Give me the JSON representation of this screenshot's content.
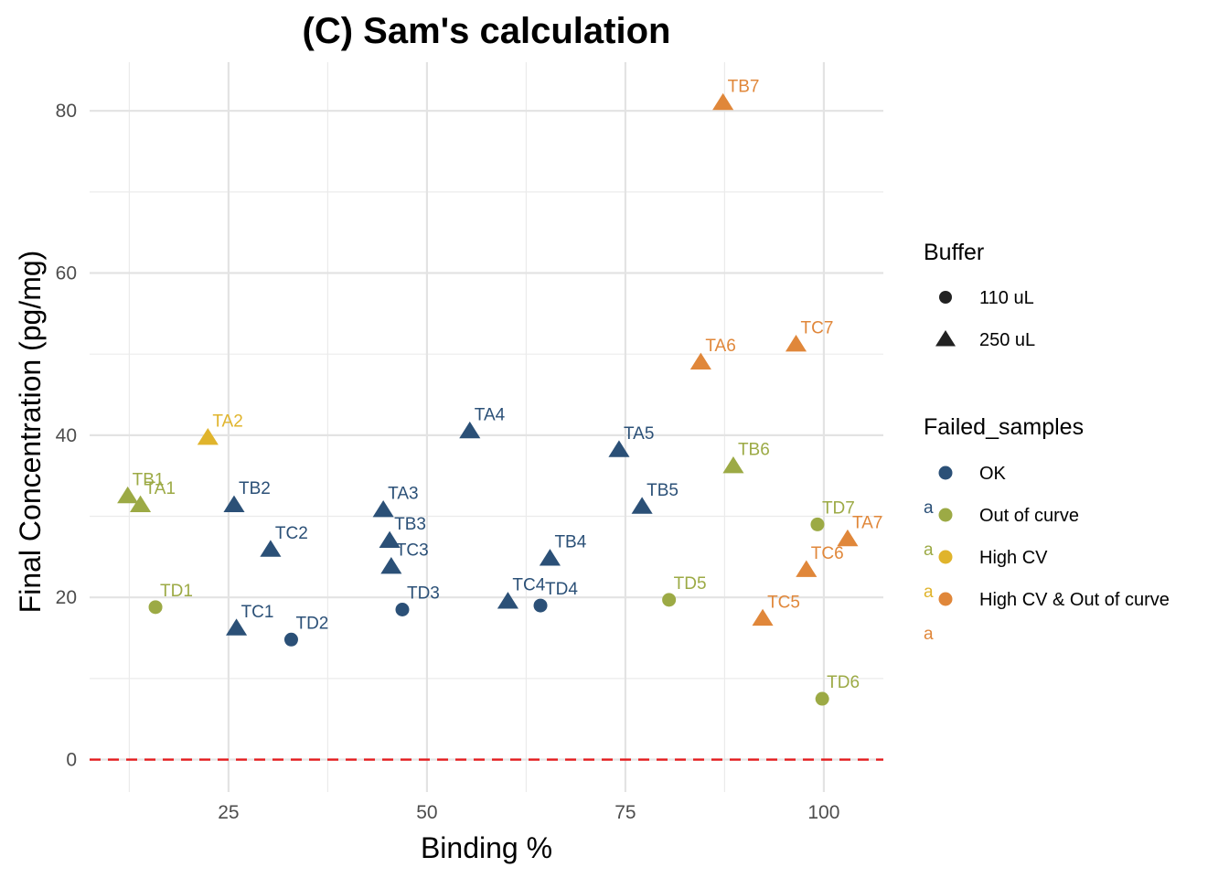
{
  "chart_data": {
    "type": "scatter",
    "title": "(C) Sam's calculation",
    "xlabel": "Binding %",
    "ylabel": "Final Concentration (pg/mg)",
    "xlim": [
      7.5,
      107.5
    ],
    "ylim": [
      -4,
      86
    ],
    "x_ticks": [
      25,
      50,
      75,
      100
    ],
    "x_tick_labels": [
      "25",
      "50",
      "75",
      "100"
    ],
    "y_ticks": [
      0,
      20,
      40,
      60,
      80
    ],
    "y_tick_labels": [
      "0",
      "20",
      "40",
      "60",
      "80"
    ],
    "grid": true,
    "reference_line": {
      "y": 0,
      "color": "#e41a1c",
      "style": "dashed"
    },
    "legend_position": "right",
    "shape_legend": {
      "title": "Buffer",
      "items": [
        {
          "label": "110 uL",
          "shape": "circle"
        },
        {
          "label": "250 uL",
          "shape": "triangle"
        }
      ]
    },
    "color_legend": {
      "title": "Failed_samples",
      "items": [
        {
          "label": "OK",
          "color": "#2b5077"
        },
        {
          "label": "Out of curve",
          "color": "#9caa45"
        },
        {
          "label": "High CV",
          "color": "#e0b42c"
        },
        {
          "label": "High CV & Out of curve",
          "color": "#e0873a"
        }
      ],
      "key_text": "a"
    },
    "points": [
      {
        "label": "TB7",
        "x": 87.3,
        "y": 81.0,
        "shape": "triangle",
        "status": "High CV & Out of curve"
      },
      {
        "label": "TC7",
        "x": 96.5,
        "y": 51.2,
        "shape": "triangle",
        "status": "High CV & Out of curve"
      },
      {
        "label": "TA6",
        "x": 84.5,
        "y": 49.0,
        "shape": "triangle",
        "status": "High CV & Out of curve"
      },
      {
        "label": "TA7",
        "x": 103.0,
        "y": 27.2,
        "shape": "triangle",
        "status": "High CV & Out of curve"
      },
      {
        "label": "TC6",
        "x": 97.8,
        "y": 23.4,
        "shape": "triangle",
        "status": "High CV & Out of curve"
      },
      {
        "label": "TC5",
        "x": 92.3,
        "y": 17.4,
        "shape": "triangle",
        "status": "High CV & Out of curve"
      },
      {
        "label": "TA2",
        "x": 22.4,
        "y": 39.7,
        "shape": "triangle",
        "status": "High CV"
      },
      {
        "label": "TB1",
        "x": 12.3,
        "y": 32.5,
        "shape": "triangle",
        "status": "Out of curve"
      },
      {
        "label": "TA1",
        "x": 13.9,
        "y": 31.4,
        "shape": "triangle",
        "status": "Out of curve"
      },
      {
        "label": "TD1",
        "x": 15.8,
        "y": 18.8,
        "shape": "circle",
        "status": "Out of curve"
      },
      {
        "label": "TB6",
        "x": 88.6,
        "y": 36.2,
        "shape": "triangle",
        "status": "Out of curve"
      },
      {
        "label": "TD7",
        "x": 99.2,
        "y": 29.0,
        "shape": "circle",
        "status": "Out of curve"
      },
      {
        "label": "TD5",
        "x": 80.5,
        "y": 19.7,
        "shape": "circle",
        "status": "Out of curve"
      },
      {
        "label": "TD6",
        "x": 99.8,
        "y": 7.5,
        "shape": "circle",
        "status": "Out of curve"
      },
      {
        "label": "TB2",
        "x": 25.7,
        "y": 31.4,
        "shape": "triangle",
        "status": "OK"
      },
      {
        "label": "TC2",
        "x": 30.3,
        "y": 25.9,
        "shape": "triangle",
        "status": "OK"
      },
      {
        "label": "TC1",
        "x": 26.0,
        "y": 16.2,
        "shape": "triangle",
        "status": "OK"
      },
      {
        "label": "TD2",
        "x": 32.9,
        "y": 14.8,
        "shape": "circle",
        "status": "OK"
      },
      {
        "label": "TA3",
        "x": 44.5,
        "y": 30.8,
        "shape": "triangle",
        "status": "OK"
      },
      {
        "label": "TB3",
        "x": 45.3,
        "y": 27.0,
        "shape": "triangle",
        "status": "OK"
      },
      {
        "label": "TC3",
        "x": 45.5,
        "y": 23.8,
        "shape": "triangle",
        "status": "OK"
      },
      {
        "label": "TD3",
        "x": 46.9,
        "y": 18.5,
        "shape": "circle",
        "status": "OK"
      },
      {
        "label": "TA4",
        "x": 55.4,
        "y": 40.5,
        "shape": "triangle",
        "status": "OK"
      },
      {
        "label": "TC4",
        "x": 60.2,
        "y": 19.5,
        "shape": "triangle",
        "status": "OK"
      },
      {
        "label": "TD4",
        "x": 64.3,
        "y": 19.0,
        "shape": "circle",
        "status": "OK"
      },
      {
        "label": "TB4",
        "x": 65.5,
        "y": 24.8,
        "shape": "triangle",
        "status": "OK"
      },
      {
        "label": "TA5",
        "x": 74.2,
        "y": 38.2,
        "shape": "triangle",
        "status": "OK"
      },
      {
        "label": "TB5",
        "x": 77.1,
        "y": 31.2,
        "shape": "triangle",
        "status": "OK"
      }
    ]
  }
}
